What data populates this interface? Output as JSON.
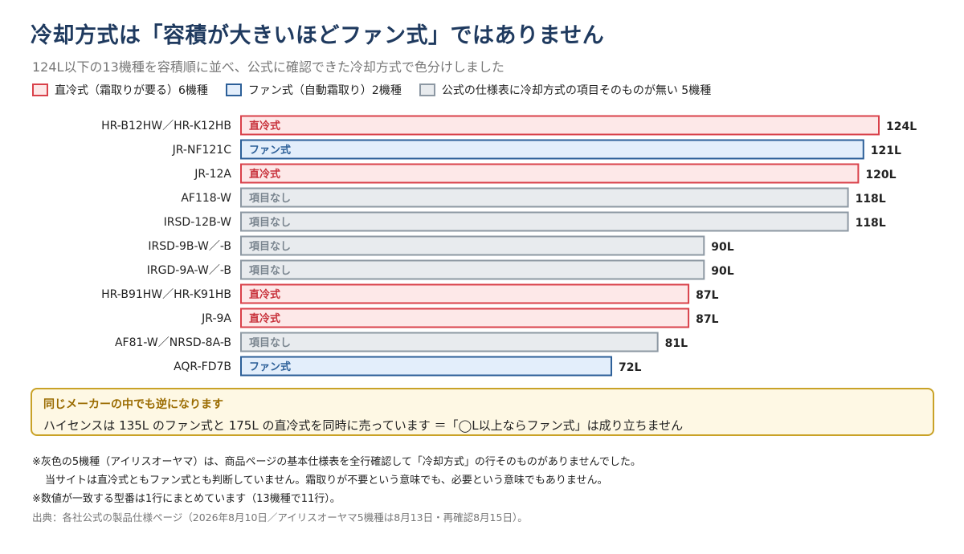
{
  "title": "冷却方式は「容積が大きいほどファン式」ではありません",
  "subtitle": "124L以下の13機種を容積順に並べ、公式に確認できた冷却方式で色分けしました",
  "legend": [
    {
      "key": "direct",
      "label": "直冷式（霜取りが要る）6機種"
    },
    {
      "key": "fan",
      "label": "ファン式（自動霜取り）2機種"
    },
    {
      "key": "none",
      "label": "公式の仕様表に冷却方式の項目そのものが無い 5機種"
    }
  ],
  "colors": {
    "direct": {
      "fill": "#fde8e8",
      "stroke": "#d9414a",
      "text": "#c8323c"
    },
    "fan": {
      "fill": "#e3eefb",
      "stroke": "#2c5f98",
      "text": "#2c5f98"
    },
    "none": {
      "fill": "#e8ebee",
      "stroke": "#8d98a3",
      "text": "#7a858f"
    }
  },
  "chart_data": {
    "type": "bar",
    "orientation": "horizontal",
    "unit": "L",
    "xlim": [
      0,
      124
    ],
    "categories": [
      "HR-B12HW／HR-K12HB",
      "JR-NF121C",
      "JR-12A",
      "AF118-W",
      "IRSD-12B-W",
      "IRSD-9B-W／-B",
      "IRGD-9A-W／-B",
      "HR-B91HW／HR-K91HB",
      "JR-9A",
      "AF81-W／NRSD-8A-B",
      "AQR-FD7B"
    ],
    "values": [
      124,
      121,
      120,
      118,
      118,
      90,
      90,
      87,
      87,
      81,
      72
    ],
    "value_labels": [
      "124L",
      "121L",
      "120L",
      "118L",
      "118L",
      "90L",
      "90L",
      "87L",
      "87L",
      "81L",
      "72L"
    ],
    "cooling_type": [
      "direct",
      "fan",
      "direct",
      "none",
      "none",
      "none",
      "none",
      "direct",
      "direct",
      "none",
      "fan"
    ],
    "bar_labels": [
      "直冷式",
      "ファン式",
      "直冷式",
      "項目なし",
      "項目なし",
      "項目なし",
      "項目なし",
      "直冷式",
      "直冷式",
      "項目なし",
      "ファン式"
    ]
  },
  "callout": {
    "title": "同じメーカーの中でも逆になります",
    "text": "ハイセンスは 135L のファン式と 175L の直冷式を同時に売っています ＝「◯L以上ならファン式」は成り立ちません"
  },
  "notes": [
    "※灰色の5機種（アイリスオーヤマ）は、商品ページの基本仕様表を全行確認して「冷却方式」の行そのものがありませんでした。",
    "当サイトは直冷式ともファン式とも判断していません。霜取りが不要という意味でも、必要という意味でもありません。",
    "※数値が一致する型番は1行にまとめています（13機種で11行）。"
  ],
  "source": "出典：各社公式の製品仕様ページ（2026年8月10日／アイリスオーヤマ5機種は8月13日・再確認8月15日）。"
}
